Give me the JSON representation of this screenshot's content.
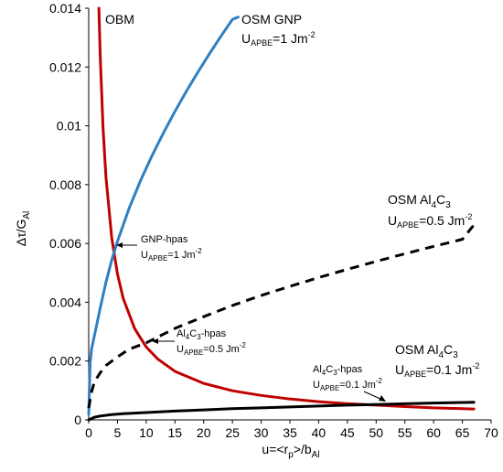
{
  "chart_data": {
    "type": "line",
    "xlabel": "u=<r_p>/b_Al",
    "ylabel": "Δτ/G_Al",
    "xlim": [
      0,
      70
    ],
    "ylim": [
      0,
      0.014
    ],
    "xticks": [
      "0",
      "5",
      "10",
      "15",
      "20",
      "25",
      "30",
      "35",
      "40",
      "45",
      "50",
      "55",
      "60",
      "65",
      "70"
    ],
    "yticks": [
      "0",
      "0.002",
      "0.004",
      "0.006",
      "0.008",
      "0.01",
      "0.012",
      "0.014"
    ],
    "grid": false,
    "series": [
      {
        "name": "OBM",
        "color": "#c00000",
        "style": "solid",
        "x": [
          1.77,
          2,
          2.5,
          3,
          4,
          5,
          6,
          8,
          10,
          12,
          15,
          20,
          25,
          30,
          35,
          40,
          45,
          50,
          55,
          60,
          65,
          67
        ],
        "y": [
          0.014,
          0.01239,
          0.00991,
          0.00826,
          0.0062,
          0.00496,
          0.00413,
          0.0031,
          0.00248,
          0.00207,
          0.00165,
          0.00124,
          0.00099,
          0.00083,
          0.00071,
          0.00062,
          0.00055,
          0.0005,
          0.00045,
          0.00041,
          0.00038,
          0.00037
        ]
      },
      {
        "name": "OSM GNP",
        "color": "#2f7fc1",
        "style": "solid",
        "x": [
          0,
          0.25,
          0.5,
          1,
          2,
          3,
          4,
          5,
          7,
          9,
          11,
          13,
          15,
          17,
          19,
          21,
          23,
          25,
          26
        ],
        "y": [
          0.0002,
          0.00195,
          0.00241,
          0.00287,
          0.0038,
          0.00468,
          0.00543,
          0.00607,
          0.00718,
          0.00813,
          0.00898,
          0.00976,
          0.01049,
          0.01118,
          0.01183,
          0.01245,
          0.01305,
          0.01362,
          0.0137
        ]
      },
      {
        "name": "OSM Al4C3 U_APBE=0.5 Jm-2",
        "color": "#000000",
        "style": "dashed",
        "x": [
          0,
          0.5,
          1,
          2,
          3,
          5,
          7,
          10,
          15,
          20,
          25,
          30,
          35,
          40,
          45,
          50,
          55,
          60,
          65,
          67
        ],
        "y": [
          0.0004,
          0.00095,
          0.0013,
          0.0016,
          0.00185,
          0.00214,
          0.0024,
          0.00262,
          0.00311,
          0.00351,
          0.00389,
          0.00423,
          0.00454,
          0.00484,
          0.00512,
          0.00539,
          0.00565,
          0.0059,
          0.00614,
          0.00663
        ]
      },
      {
        "name": "OSM Al4C3 U_APBE=0.1 Jm-2",
        "color": "#000000",
        "style": "solid",
        "x": [
          0,
          1,
          2,
          4,
          6,
          10,
          15,
          20,
          25,
          30,
          35,
          40,
          45,
          50,
          55,
          60,
          65,
          67
        ],
        "y": [
          0,
          9e-05,
          0.00013,
          0.00018,
          0.00021,
          0.00025,
          0.0003,
          0.00034,
          0.00038,
          0.00041,
          0.00044,
          0.00047,
          0.0005,
          0.00052,
          0.00055,
          0.00057,
          0.00059,
          0.0006
        ]
      }
    ],
    "annotations": {
      "obm": "OBM",
      "gnp_title": "OSM GNP",
      "gnp_u_main": "U",
      "gnp_u_sub": "APBE",
      "gnp_u_val": "=1 Jm",
      "gnp_u_sup": "-2",
      "al05_title_a": "OSM Al",
      "al05_title_s1": "4",
      "al05_title_b": "C",
      "al05_title_s2": "3",
      "al05_u_main": "U",
      "al05_u_sub": "APBE",
      "al05_u_val": "=0.5 Jm",
      "al05_u_sup": "-2",
      "al01_title_a": "OSM Al",
      "al01_title_s1": "4",
      "al01_title_b": "C",
      "al01_title_s2": "3",
      "al01_u_main": "U",
      "al01_u_sub": "APBE",
      "al01_u_val": "=0.1 Jm",
      "al01_u_sup": "-2",
      "hp_gnp_title": "GNP-hpas",
      "hp_gnp_u_main": "U",
      "hp_gnp_u_sub": "APBE",
      "hp_gnp_u_val": "=1 Jm",
      "hp_gnp_u_sup": "-2",
      "hp_al05_a": "Al",
      "hp_al05_s1": "4",
      "hp_al05_b": "C",
      "hp_al05_s2": "3",
      "hp_al05_c": "-hpas",
      "hp_al05_u_main": "U",
      "hp_al05_u_sub": "APBE",
      "hp_al05_u_val": "=0.5 Jm",
      "hp_al05_u_sup": "-2",
      "hp_al01_a": "Al",
      "hp_al01_s1": "4",
      "hp_al01_b": "C",
      "hp_al01_s2": "3",
      "hp_al01_c": "-hpas",
      "hp_al01_u_main": "U",
      "hp_al01_u_sub": "APBE",
      "hp_al01_u_val": "=0.1 Jm",
      "hp_al01_u_sup": "-2"
    },
    "axis_text": {
      "y_delta": "Δτ/G",
      "y_sub": "Al",
      "x_main": "u=<r",
      "x_sub1": "p",
      "x_mid": ">/b",
      "x_sub2": "Al"
    }
  }
}
